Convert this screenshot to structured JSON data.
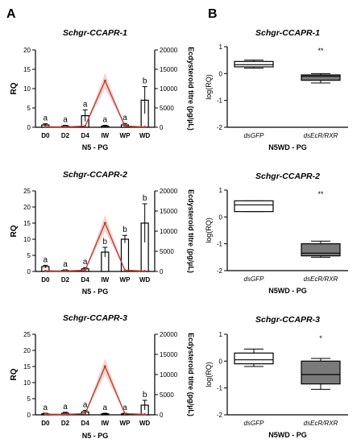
{
  "panels": {
    "a": "A",
    "b": "B"
  },
  "colors": {
    "bar": "#ffffff",
    "ecdy_line": "#b5433b",
    "ecdy_band": "#f3c9c6",
    "box_dsGFP": "#ffffff",
    "box_dsEcR": "#7a7a7a",
    "ecdy_label": "#b5433b"
  },
  "chart_data": [
    {
      "type": "bar",
      "title": "Schgr-CCAPR-1",
      "categories": [
        "D0",
        "D2",
        "D4",
        "IW",
        "WP",
        "WD"
      ],
      "xlabel": "N5 - PG",
      "ylabel": "RQ",
      "ylim": [
        0,
        20
      ],
      "yticks": [
        "0",
        "5",
        "10",
        "15",
        "20"
      ],
      "values": [
        0.6,
        0.3,
        3.0,
        0.3,
        0.6,
        7.0
      ],
      "errors": [
        0.3,
        0.2,
        1.5,
        0.2,
        0.4,
        3.5
      ],
      "letters": [
        "a",
        "a",
        "a",
        "a",
        "a",
        "b"
      ],
      "y2label": "Ecdysteroid titre (pg/µL)",
      "y2lim": [
        0,
        20000
      ],
      "y2ticks": [
        "0",
        "5000",
        "10000",
        "15000",
        "20000"
      ],
      "line_values": [
        150,
        100,
        300,
        12000,
        300,
        100
      ],
      "line_errors": [
        50,
        50,
        100,
        2000,
        100,
        50
      ]
    },
    {
      "type": "bar",
      "title": "Schgr-CCAPR-2",
      "categories": [
        "D0",
        "D2",
        "D4",
        "IW",
        "WP",
        "WD"
      ],
      "xlabel": "N5 - PG",
      "ylabel": "RQ",
      "ylim": [
        0,
        25
      ],
      "yticks": [
        "0",
        "5",
        "10",
        "15",
        "20",
        "25"
      ],
      "values": [
        1.5,
        0.3,
        0.8,
        6.0,
        10.0,
        15.0
      ],
      "errors": [
        0.4,
        0.2,
        0.4,
        1.5,
        1.2,
        6.0
      ],
      "letters": [
        "a",
        "a",
        "a",
        "b",
        "b",
        "b"
      ],
      "y2label": "Ecdysteroid titre (pg/µL)",
      "y2lim": [
        0,
        20000
      ],
      "y2ticks": [
        "0",
        "5000",
        "10000",
        "15000",
        "20000"
      ],
      "line_values": [
        150,
        100,
        300,
        12000,
        300,
        100
      ],
      "line_errors": [
        50,
        50,
        100,
        2000,
        100,
        50
      ]
    },
    {
      "type": "bar",
      "title": "Schgr-CCAPR-3",
      "categories": [
        "D0",
        "D2",
        "D4",
        "IW",
        "WP",
        "WD"
      ],
      "xlabel": "N5 - PG",
      "ylabel": "RQ",
      "ylim": [
        0,
        25
      ],
      "yticks": [
        "0",
        "5",
        "10",
        "15",
        "20",
        "25"
      ],
      "values": [
        0.3,
        0.5,
        0.9,
        0.3,
        0.3,
        3.0
      ],
      "errors": [
        0.2,
        0.3,
        0.5,
        0.2,
        0.2,
        1.5
      ],
      "letters": [
        "a",
        "a",
        "a",
        "a",
        "a",
        "b"
      ],
      "y2label": "Ecdysteroid titre (pg/µL)",
      "y2lim": [
        0,
        20000
      ],
      "y2ticks": [
        "0",
        "5000",
        "10000",
        "15000",
        "20000"
      ],
      "line_values": [
        150,
        100,
        300,
        12000,
        300,
        100
      ],
      "line_errors": [
        50,
        50,
        100,
        2000,
        100,
        50
      ]
    },
    {
      "type": "box",
      "title": "Schgr-CCAPR-1",
      "categories": [
        "dsGFP",
        "dsEcR/RXR"
      ],
      "xlabel": "N5WD - PG",
      "ylabel": "log(RQ)",
      "ylim": [
        -2,
        1
      ],
      "yticks": [
        "-2",
        "-1",
        "0",
        "1"
      ],
      "boxes": [
        {
          "min": 0.2,
          "q1": 0.25,
          "median": 0.33,
          "q3": 0.45,
          "max": 0.5
        },
        {
          "min": -0.35,
          "q1": -0.25,
          "median": -0.1,
          "q3": -0.05,
          "max": 0.0
        }
      ],
      "significance": "**"
    },
    {
      "type": "box",
      "title": "Schgr-CCAPR-2",
      "categories": [
        "dsGFP",
        "dsEcR/RXR"
      ],
      "xlabel": "N5WD - PG",
      "ylabel": "log(RQ)",
      "ylim": [
        -2,
        1
      ],
      "yticks": [
        "-2",
        "-1",
        "0",
        "1"
      ],
      "boxes": [
        {
          "min": 0.2,
          "q1": 0.2,
          "median": 0.45,
          "q3": 0.6,
          "max": 0.6
        },
        {
          "min": -1.5,
          "q1": -1.45,
          "median": -1.35,
          "q3": -1.0,
          "max": -0.9
        }
      ],
      "significance": "**"
    },
    {
      "type": "box",
      "title": "Schgr-CCAPR-3",
      "categories": [
        "dsGFP",
        "dsEcR/RXR"
      ],
      "xlabel": "N5WD - PG",
      "ylabel": "log(RQ)",
      "ylim": [
        -2,
        1
      ],
      "yticks": [
        "-2",
        "-1",
        "0",
        "1"
      ],
      "boxes": [
        {
          "min": -0.2,
          "q1": -0.1,
          "median": 0.05,
          "q3": 0.3,
          "max": 0.45
        },
        {
          "min": -1.05,
          "q1": -0.85,
          "median": -0.5,
          "q3": 0.0,
          "max": 0.1
        }
      ],
      "significance": "*"
    }
  ]
}
